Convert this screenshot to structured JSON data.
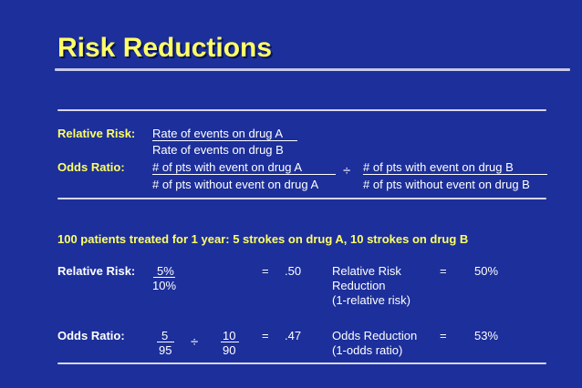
{
  "title": "Risk Reductions",
  "defs": {
    "rr_label": "Relative Risk:",
    "rr_num": "Rate of events on drug A",
    "rr_den": "Rate of events on drug B",
    "or_label": "Odds Ratio:",
    "or_num_a": "# of pts with event on drug A",
    "or_den_a": "# of pts without event on drug A",
    "div_sign": "÷",
    "or_num_b": "# of pts with event on drug B",
    "or_den_b": "# of pts without event on drug B"
  },
  "example": {
    "heading": "100 patients treated for 1 year: 5 strokes on drug A, 10 strokes on drug B",
    "rr_label": "Relative Risk:",
    "rr_num": "5%",
    "rr_den": "10%",
    "rr_eq": "=",
    "rr_val": ".50",
    "rrr_label_1": "Relative Risk",
    "rrr_label_2": "Reduction",
    "rrr_label_3": "(1-relative risk)",
    "rrr_eq": "=",
    "rrr_val": "50%",
    "or_label": "Odds Ratio:",
    "or_num_a": "5",
    "or_den_a": "95",
    "or_div": "÷",
    "or_num_b": "10",
    "or_den_b": "90",
    "or_eq": "=",
    "or_val": ".47",
    "odr_label_1": "Odds Reduction",
    "odr_label_2": "(1-odds ratio)",
    "odr_eq": "=",
    "odr_val": "53%"
  },
  "colors": {
    "background": "#1c2f9a",
    "title": "#ffff66",
    "text": "#ffffff"
  }
}
